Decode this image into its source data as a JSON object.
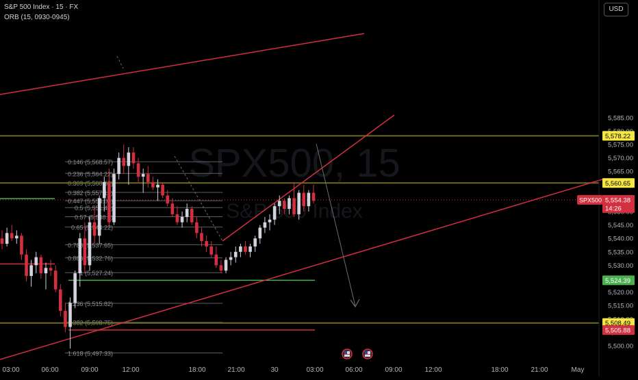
{
  "header": {
    "symbol_line": "S&P 500 Index · 15 · FX",
    "indicator_line": "ORB (15, 0930-0945)",
    "currency": "USD"
  },
  "watermark": {
    "symbol": "SPX500, 15",
    "name": "S&P 500 Index"
  },
  "colors": {
    "background": "#000000",
    "up_candle": "#d1d4dc",
    "down_candle": "#d32f3f",
    "trendline": "#d32f3f",
    "orb_level": "#6e6a1e",
    "fib_line": "#5d6068",
    "green_level": "#4caf50",
    "label_yellow": "#f5e642",
    "label_red": "#d32f3f",
    "label_green": "#4caf50"
  },
  "chart_data": {
    "type": "candlestick",
    "ylim": [
      5497,
      5587
    ],
    "y_ticks": [
      "5,585.00",
      "5,580.00",
      "5,575.00",
      "5,570.00",
      "5,565.00",
      "5,560.00",
      "5,555.00",
      "5,550.00",
      "5,545.00",
      "5,540.00",
      "5,535.00",
      "5,530.00",
      "5,525.00",
      "5,520.00",
      "5,515.00",
      "5,510.00",
      "5,505.00",
      "5,500.00"
    ],
    "x_ticks": [
      "03:00",
      "06:00",
      "09:00",
      "12:00",
      "18:00",
      "21:00",
      "30",
      "03:00",
      "06:00",
      "09:00",
      "12:00",
      "18:00",
      "21:00",
      "May"
    ],
    "price_labels": [
      {
        "text": "5,578.22",
        "price": 5578.22,
        "style": "yellow"
      },
      {
        "text": "5,560.65",
        "price": 5560.65,
        "style": "yellow"
      },
      {
        "text": "5,524.39",
        "price": 5524.39,
        "style": "green"
      },
      {
        "text": "5,508.49",
        "price": 5508.49,
        "style": "yellow"
      },
      {
        "text": "5,505.88",
        "price": 5505.88,
        "style": "red"
      }
    ],
    "current_price": {
      "symbol": "SPX500",
      "price_text": "5,554.38",
      "price": 5554.38,
      "countdown": "14:26"
    },
    "fib_levels": [
      {
        "ratio": "0.146",
        "price_text": "5,568.57"
      },
      {
        "ratio": "0.236",
        "price_text": "5,564.22"
      },
      {
        "ratio": "0.309",
        "price_text": "5,560.68"
      },
      {
        "ratio": "0.382",
        "price_text": "5,557.15"
      },
      {
        "ratio": "0.447",
        "price_text": "5,554.05"
      },
      {
        "ratio": "0.5",
        "price_text": "5,551.47"
      },
      {
        "ratio": "0.57",
        "price_text": "5,548.1"
      },
      {
        "ratio": "0.65",
        "price_text": "5,544.22"
      },
      {
        "ratio": "0.786",
        "price_text": "5,537.65"
      },
      {
        "ratio": "0.886",
        "price_text": "5,532.76"
      },
      {
        "ratio": "1",
        "price_text": "5,527.24"
      },
      {
        "ratio": "1.236",
        "price_text": "5,515.82"
      },
      {
        "ratio": "1.382",
        "price_text": "5,508.75"
      },
      {
        "ratio": "1.618",
        "price_text": "5,497.33"
      }
    ],
    "candles": [
      [
        5540,
        5543,
        5536,
        5538
      ],
      [
        5538,
        5544,
        5537,
        5542
      ],
      [
        5542,
        5545,
        5539,
        5540
      ],
      [
        5540,
        5543,
        5538,
        5541
      ],
      [
        5541,
        5542,
        5532,
        5534
      ],
      [
        5534,
        5536,
        5524,
        5526
      ],
      [
        5526,
        5532,
        5522,
        5530
      ],
      [
        5530,
        5535,
        5527,
        5533
      ],
      [
        5533,
        5534,
        5525,
        5527
      ],
      [
        5527,
        5531,
        5521,
        5529
      ],
      [
        5529,
        5532,
        5526,
        5528
      ],
      [
        5528,
        5530,
        5520,
        5521
      ],
      [
        5521,
        5523,
        5511,
        5513
      ],
      [
        5513,
        5516,
        5505,
        5507
      ],
      [
        5507,
        5518,
        5499,
        5516
      ],
      [
        5516,
        5528,
        5514,
        5527
      ],
      [
        5527,
        5542,
        5522,
        5540
      ],
      [
        5540,
        5546,
        5527,
        5530
      ],
      [
        5530,
        5548,
        5528,
        5546
      ],
      [
        5546,
        5552,
        5538,
        5541
      ],
      [
        5541,
        5556,
        5538,
        5555
      ],
      [
        5555,
        5563,
        5550,
        5561
      ],
      [
        5561,
        5566,
        5544,
        5546
      ],
      [
        5546,
        5566,
        5545,
        5564
      ],
      [
        5564,
        5572,
        5562,
        5570
      ],
      [
        5570,
        5575,
        5564,
        5567
      ],
      [
        5567,
        5574,
        5560,
        5572
      ],
      [
        5572,
        5574,
        5566,
        5568
      ],
      [
        5568,
        5570,
        5561,
        5563
      ],
      [
        5563,
        5566,
        5557,
        5564
      ],
      [
        5564,
        5567,
        5559,
        5561
      ],
      [
        5561,
        5563,
        5558,
        5559
      ],
      [
        5559,
        5562,
        5554,
        5560
      ],
      [
        5560,
        5561,
        5555,
        5556
      ],
      [
        5556,
        5558,
        5552,
        5553
      ],
      [
        5553,
        5555,
        5548,
        5549
      ],
      [
        5549,
        5552,
        5545,
        5546
      ],
      [
        5546,
        5550,
        5544,
        5548
      ],
      [
        5548,
        5553,
        5546,
        5551
      ],
      [
        5551,
        5552,
        5545,
        5546
      ],
      [
        5546,
        5548,
        5540,
        5542
      ],
      [
        5542,
        5544,
        5537,
        5539
      ],
      [
        5539,
        5541,
        5535,
        5537
      ],
      [
        5537,
        5539,
        5533,
        5534
      ],
      [
        5534,
        5537,
        5529,
        5530
      ],
      [
        5530,
        5532,
        5527,
        5528
      ],
      [
        5528,
        5533,
        5527,
        5532
      ],
      [
        5532,
        5535,
        5530,
        5533
      ],
      [
        5533,
        5537,
        5531,
        5535
      ],
      [
        5535,
        5538,
        5533,
        5537
      ],
      [
        5537,
        5539,
        5534,
        5535
      ],
      [
        5535,
        5538,
        5533,
        5537
      ],
      [
        5537,
        5541,
        5535,
        5540
      ],
      [
        5540,
        5545,
        5538,
        5544
      ],
      [
        5544,
        5548,
        5542,
        5546
      ],
      [
        5546,
        5549,
        5543,
        5547
      ],
      [
        5547,
        5553,
        5545,
        5552
      ],
      [
        5552,
        5556,
        5549,
        5554
      ],
      [
        5554,
        5555,
        5549,
        5551
      ],
      [
        5551,
        5556,
        5549,
        5555
      ],
      [
        5555,
        5561,
        5548,
        5549
      ],
      [
        5549,
        5558,
        5547,
        5557
      ],
      [
        5557,
        5560,
        5550,
        5552
      ],
      [
        5552,
        5558,
        5550,
        5557
      ],
      [
        5557,
        5560,
        5553,
        5554
      ]
    ],
    "trendlines": [
      {
        "from": {
          "date": "Apr 29 03:00",
          "price": 5564.2
        },
        "to": {
          "date": "Apr 30 06:00",
          "price": 5581.8
        }
      },
      {
        "from": {
          "date": "Apr 29 03:00",
          "price": 5491.9
        },
        "to": {
          "date": "May 1 00:30",
          "price": 5543.0
        }
      },
      {
        "from": {
          "date": "Apr 29 19:45",
          "price": 5527.0
        },
        "to": {
          "date": "Apr 30 09:00",
          "price": 5560.2
        }
      }
    ],
    "projection_arrow": {
      "from": {
        "date": "Apr 30 03:15",
        "price": 5548.0
      },
      "to": {
        "date": "Apr 30 06:00",
        "price": 5510.0
      }
    }
  }
}
